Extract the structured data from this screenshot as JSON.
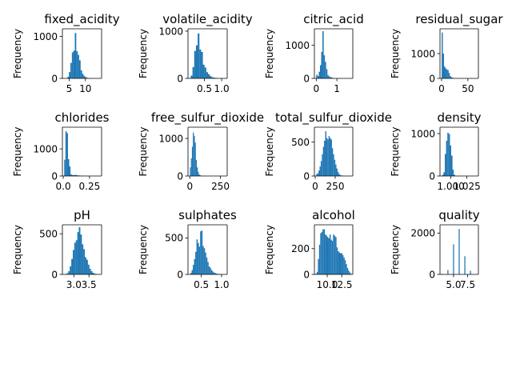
{
  "chart_data": [
    {
      "type": "bar",
      "title": "fixed_acidity",
      "ylabel": "Frequency",
      "x": [
        3.8,
        4.25,
        4.7,
        5.15,
        5.6,
        6.05,
        6.5,
        6.95,
        7.4,
        7.85,
        8.3,
        8.75,
        9.2,
        9.65,
        10.1,
        10.55,
        11.0,
        11.45,
        11.9,
        12.35,
        12.8,
        13.25,
        13.7,
        14.15
      ],
      "values": [
        1,
        10,
        40,
        150,
        370,
        620,
        660,
        1080,
        650,
        560,
        430,
        190,
        110,
        60,
        30,
        15,
        8,
        4,
        2,
        1,
        1,
        0,
        0,
        1
      ],
      "xlim": [
        2.9,
        15.0
      ],
      "ylim": [
        0,
        1180
      ],
      "xticks": [
        5,
        10
      ],
      "yticks": [
        0,
        1000
      ]
    },
    {
      "type": "bar",
      "title": "volatile_acidity",
      "ylabel": "Frequency",
      "x": [
        0.08,
        0.13,
        0.18,
        0.23,
        0.28,
        0.33,
        0.38,
        0.43,
        0.48,
        0.53,
        0.58,
        0.63,
        0.68,
        0.73,
        0.78,
        0.83,
        0.88,
        0.93,
        0.98,
        1.03,
        1.08
      ],
      "values": [
        5,
        60,
        240,
        580,
        700,
        950,
        610,
        560,
        290,
        230,
        130,
        90,
        50,
        25,
        15,
        10,
        5,
        3,
        2,
        1,
        1
      ],
      "xlim": [
        0.025,
        1.16
      ],
      "ylim": [
        0,
        1050
      ],
      "xticks": [
        0.5,
        1.0
      ],
      "yticks": [
        0,
        1000
      ]
    },
    {
      "type": "bar",
      "title": "citric_acid",
      "ylabel": "Frequency",
      "x": [
        0.03,
        0.09,
        0.15,
        0.21,
        0.27,
        0.33,
        0.39,
        0.45,
        0.51,
        0.57,
        0.63,
        0.69,
        0.75,
        0.81,
        0.87,
        0.93,
        0.99,
        1.05,
        1.11,
        1.17,
        1.23,
        1.29,
        1.35,
        1.41,
        1.47,
        1.53,
        1.59,
        1.65
      ],
      "values": [
        110,
        70,
        200,
        400,
        800,
        1430,
        700,
        500,
        280,
        100,
        60,
        40,
        30,
        10,
        5,
        3,
        2,
        1,
        1,
        1,
        0,
        0,
        0,
        0,
        0,
        0,
        0,
        1
      ],
      "xlim": [
        -0.09,
        1.77
      ],
      "ylim": [
        0,
        1500
      ],
      "xticks": [
        0,
        1
      ],
      "yticks": [
        0,
        1000
      ]
    },
    {
      "type": "bar",
      "title": "residual_sugar",
      "ylabel": "Frequency",
      "x": [
        1.3,
        3.5,
        5.7,
        7.9,
        10.1,
        12.3,
        14.5,
        16.7,
        18.9,
        21.1,
        23.3,
        25.5,
        27.7,
        29.9,
        32.1,
        34.3,
        36.5,
        38.7,
        40.9,
        43.1,
        45.3,
        47.5,
        49.7,
        51.9,
        54.1,
        56.3,
        58.5,
        60.7,
        62.9,
        65.1
      ],
      "values": [
        1850,
        1000,
        480,
        410,
        360,
        340,
        220,
        100,
        50,
        25,
        10,
        5,
        3,
        2,
        1,
        1,
        0,
        0,
        0,
        0,
        0,
        0,
        0,
        0,
        0,
        0,
        0,
        0,
        0,
        1
      ],
      "xlim": [
        -3.0,
        70.0
      ],
      "ylim": [
        0,
        2000
      ],
      "xticks": [
        0,
        50
      ],
      "yticks": [
        0,
        1000
      ]
    },
    {
      "type": "bar",
      "title": "chlorides",
      "ylabel": "Frequency",
      "x": [
        0.015,
        0.027,
        0.039,
        0.051,
        0.063,
        0.075,
        0.087,
        0.099,
        0.111,
        0.123,
        0.135,
        0.147,
        0.159,
        0.171,
        0.183,
        0.195,
        0.207,
        0.219,
        0.231,
        0.243,
        0.255,
        0.267,
        0.279,
        0.291,
        0.303,
        0.315,
        0.327,
        0.339
      ],
      "values": [
        600,
        1650,
        1580,
        620,
        350,
        60,
        40,
        30,
        40,
        35,
        25,
        20,
        15,
        10,
        5,
        3,
        2,
        2,
        1,
        1,
        1,
        0,
        0,
        0,
        0,
        0,
        0,
        1
      ],
      "xlim": [
        -0.008,
        0.365
      ],
      "ylim": [
        0,
        1800
      ],
      "xticks": [
        0.0,
        0.25
      ],
      "yticks": [
        0,
        1000
      ]
    },
    {
      "type": "bar",
      "title": "free_sulfur_dioxide",
      "ylabel": "Frequency",
      "x": [
        5,
        13,
        21,
        29,
        37,
        45,
        53,
        61,
        69,
        77,
        85,
        93,
        101,
        109,
        117,
        125,
        133,
        141,
        149,
        157,
        165,
        173,
        181,
        189,
        197,
        205,
        213,
        221,
        229,
        237,
        245,
        253,
        261,
        269,
        277,
        285
      ],
      "values": [
        230,
        470,
        780,
        1160,
        1070,
        890,
        430,
        230,
        110,
        40,
        20,
        10,
        6,
        3,
        2,
        1,
        1,
        0,
        0,
        0,
        0,
        0,
        0,
        0,
        0,
        0,
        0,
        0,
        0,
        0,
        0,
        0,
        0,
        0,
        0,
        1
      ],
      "xlim": [
        -15,
        305
      ],
      "ylim": [
        0,
        1300
      ],
      "xticks": [
        0,
        250
      ],
      "yticks": [
        0,
        1000
      ]
    },
    {
      "type": "bar",
      "title": "total_sulfur_dioxide",
      "ylabel": "Frequency",
      "x": [
        20,
        34,
        48,
        62,
        76,
        90,
        104,
        118,
        132,
        146,
        160,
        174,
        188,
        202,
        216,
        230,
        244,
        258,
        272,
        286,
        300,
        314,
        328,
        342,
        356,
        370,
        384,
        398,
        412,
        426,
        440
      ],
      "values": [
        30,
        40,
        80,
        140,
        220,
        320,
        430,
        520,
        660,
        560,
        540,
        590,
        560,
        540,
        410,
        320,
        240,
        170,
        110,
        60,
        30,
        15,
        8,
        5,
        3,
        2,
        1,
        1,
        0,
        0,
        1
      ],
      "xlim": [
        -10,
        470
      ],
      "ylim": [
        0,
        720
      ],
      "xticks": [
        0,
        250
      ],
      "yticks": [
        0,
        500
      ]
    },
    {
      "type": "bar",
      "title": "density",
      "ylabel": "Frequency",
      "x": [
        0.9875,
        0.9895,
        0.9915,
        0.9935,
        0.9955,
        0.9975,
        0.9995,
        1.0015,
        1.0035,
        1.0055,
        1.0075,
        1.0095,
        1.0115,
        1.0135,
        1.0155,
        1.0175,
        1.0195,
        1.0215,
        1.0235,
        1.0255,
        1.0275,
        1.0295,
        1.0315,
        1.0335,
        1.0355,
        1.0375
      ],
      "values": [
        30,
        90,
        520,
        830,
        1020,
        990,
        720,
        480,
        150,
        30,
        5,
        2,
        1,
        0,
        0,
        0,
        0,
        0,
        0,
        0,
        0,
        0,
        0,
        0,
        0,
        1
      ],
      "xlim": [
        0.983,
        1.043
      ],
      "ylim": [
        0,
        1150
      ],
      "xticks": [
        1.0,
        1.025
      ],
      "xticklabels": [
        "1.000",
        "1.025"
      ],
      "yticks": [
        0,
        1000
      ]
    },
    {
      "type": "bar",
      "title": "pH",
      "ylabel": "Frequency",
      "x": [
        2.74,
        2.79,
        2.84,
        2.89,
        2.94,
        2.99,
        3.04,
        3.09,
        3.14,
        3.19,
        3.24,
        3.29,
        3.34,
        3.39,
        3.44,
        3.49,
        3.54,
        3.59,
        3.64,
        3.69,
        3.74,
        3.79
      ],
      "values": [
        5,
        15,
        40,
        100,
        190,
        300,
        390,
        420,
        520,
        580,
        490,
        370,
        310,
        210,
        180,
        120,
        70,
        40,
        20,
        10,
        5,
        2
      ],
      "xlim": [
        2.62,
        3.92
      ],
      "ylim": [
        0,
        610
      ],
      "xticks": [
        3.0,
        3.5
      ],
      "yticks": [
        0,
        500
      ]
    },
    {
      "type": "bar",
      "title": "sulphates",
      "ylabel": "Frequency",
      "x": [
        0.245,
        0.275,
        0.305,
        0.335,
        0.365,
        0.395,
        0.425,
        0.455,
        0.485,
        0.515,
        0.545,
        0.575,
        0.605,
        0.635,
        0.665,
        0.695,
        0.725,
        0.755,
        0.785,
        0.815,
        0.845,
        0.875,
        0.905,
        0.935,
        0.965,
        0.995,
        1.025,
        1.055
      ],
      "values": [
        20,
        60,
        130,
        210,
        310,
        480,
        430,
        380,
        590,
        600,
        390,
        360,
        300,
        230,
        170,
        110,
        90,
        60,
        40,
        25,
        20,
        10,
        8,
        5,
        3,
        2,
        1,
        1
      ],
      "xlim": [
        0.17,
        1.14
      ],
      "ylim": [
        0,
        680
      ],
      "xticks": [
        0.5,
        1.0
      ],
      "yticks": [
        0,
        500
      ]
    },
    {
      "type": "bar",
      "title": "alcohol",
      "ylabel": "Frequency",
      "x": [
        8.1,
        8.3,
        8.5,
        8.7,
        8.9,
        9.1,
        9.3,
        9.5,
        9.7,
        9.9,
        10.1,
        10.3,
        10.5,
        10.7,
        10.9,
        11.1,
        11.3,
        11.5,
        11.7,
        11.9,
        12.1,
        12.3,
        12.5,
        12.7,
        12.9,
        13.1,
        13.3,
        13.5,
        13.7,
        13.9,
        14.1
      ],
      "values": [
        5,
        20,
        120,
        230,
        320,
        330,
        350,
        350,
        310,
        300,
        290,
        280,
        310,
        270,
        260,
        310,
        300,
        290,
        210,
        180,
        170,
        165,
        165,
        150,
        130,
        110,
        80,
        50,
        30,
        15,
        5
      ],
      "xlim": [
        7.8,
        14.4
      ],
      "ylim": [
        0,
        385
      ],
      "xticks": [
        10.0,
        12.5
      ],
      "yticks": [
        0,
        200
      ]
    },
    {
      "type": "bar",
      "title": "quality",
      "ylabel": "Frequency",
      "x": [
        3,
        4,
        5,
        6,
        7,
        8,
        9
      ],
      "values": [
        30,
        216,
        1457,
        2198,
        880,
        175,
        5
      ],
      "xlim": [
        2.6,
        9.4
      ],
      "ylim": [
        0,
        2400
      ],
      "xticks": [
        5.0,
        7.5
      ],
      "yticks": [
        0,
        2000
      ]
    }
  ],
  "style": {
    "bar_color": "#1f77b4",
    "axis_color": "#000000"
  }
}
